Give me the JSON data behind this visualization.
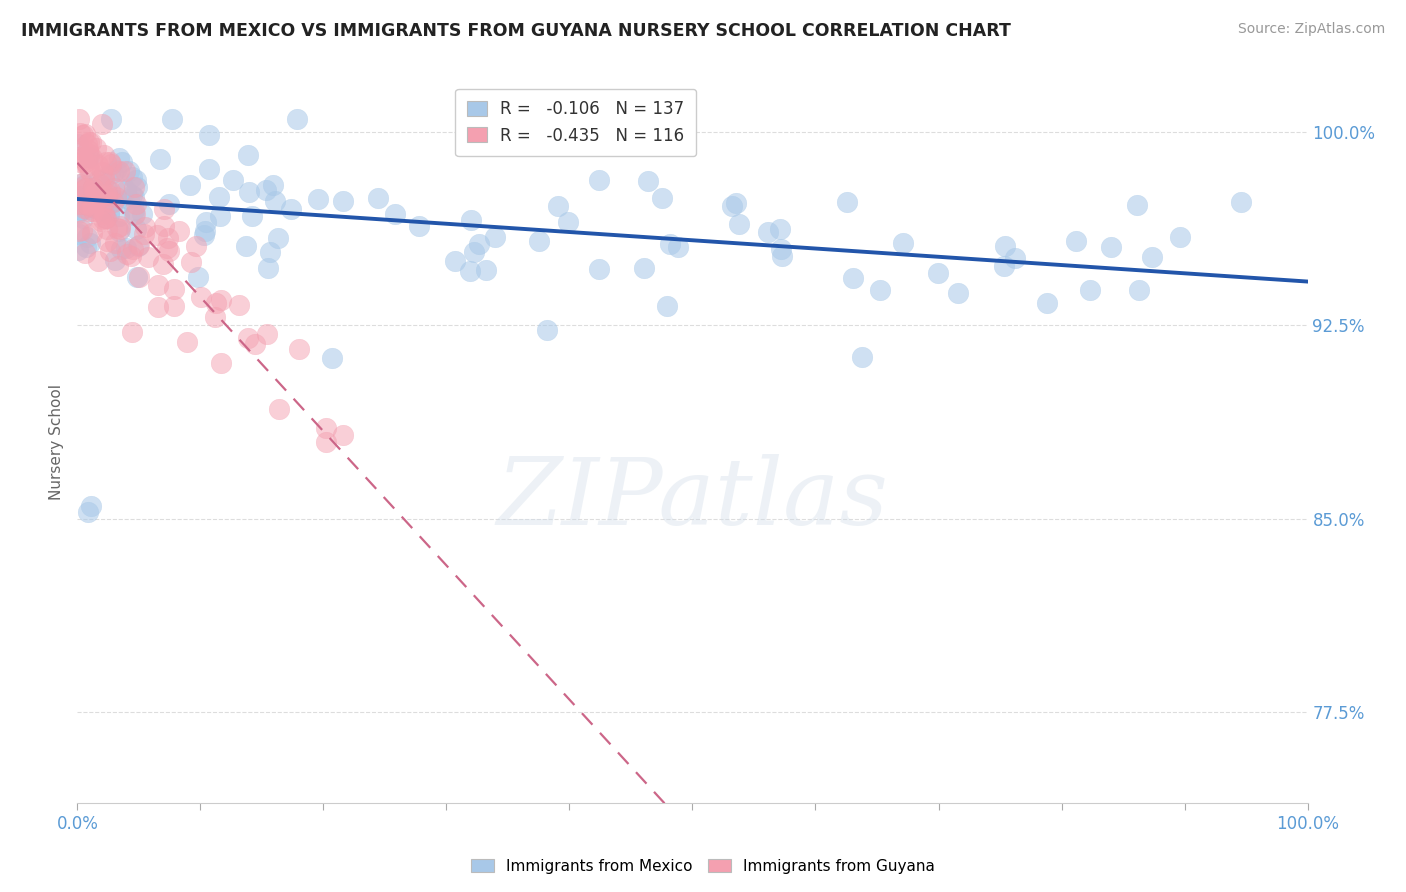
{
  "title": "IMMIGRANTS FROM MEXICO VS IMMIGRANTS FROM GUYANA NURSERY SCHOOL CORRELATION CHART",
  "source_text": "Source: ZipAtlas.com",
  "ylabel": "Nursery School",
  "legend_entries": [
    {
      "label_r": "R = ",
      "r_val": "-0.106",
      "label_n": "  N = ",
      "n_val": "137",
      "color": "#a8c8e8"
    },
    {
      "label_r": "R = ",
      "r_val": "-0.435",
      "label_n": "  N = ",
      "n_val": "116",
      "color": "#f4a0b0"
    }
  ],
  "N_mexico": 137,
  "N_guyana": 116,
  "xlim": [
    0.0,
    1.0
  ],
  "ylim": [
    0.74,
    1.02
  ],
  "yticks": [
    0.775,
    0.85,
    0.925,
    1.0
  ],
  "ytick_labels": [
    "77.5%",
    "85.0%",
    "92.5%",
    "100.0%"
  ],
  "xtick_vals": [
    0.0,
    0.1,
    0.2,
    0.3,
    0.4,
    0.5,
    0.6,
    0.7,
    0.8,
    0.9,
    1.0
  ],
  "blue_color": "#a8c8e8",
  "pink_color": "#f4a0b0",
  "trend_blue_color": "#2255aa",
  "trend_pink_color": "#cc6688",
  "watermark_text": "ZIPatlas",
  "background_color": "#ffffff",
  "grid_color": "#dddddd",
  "tick_label_color": "#5b9bd5",
  "r_val_color": "#00aacc",
  "n_val_color": "#3377cc",
  "mexico_trend_intercept": 0.974,
  "mexico_trend_slope": -0.032,
  "guyana_trend_intercept": 0.988,
  "guyana_trend_slope": -0.52
}
